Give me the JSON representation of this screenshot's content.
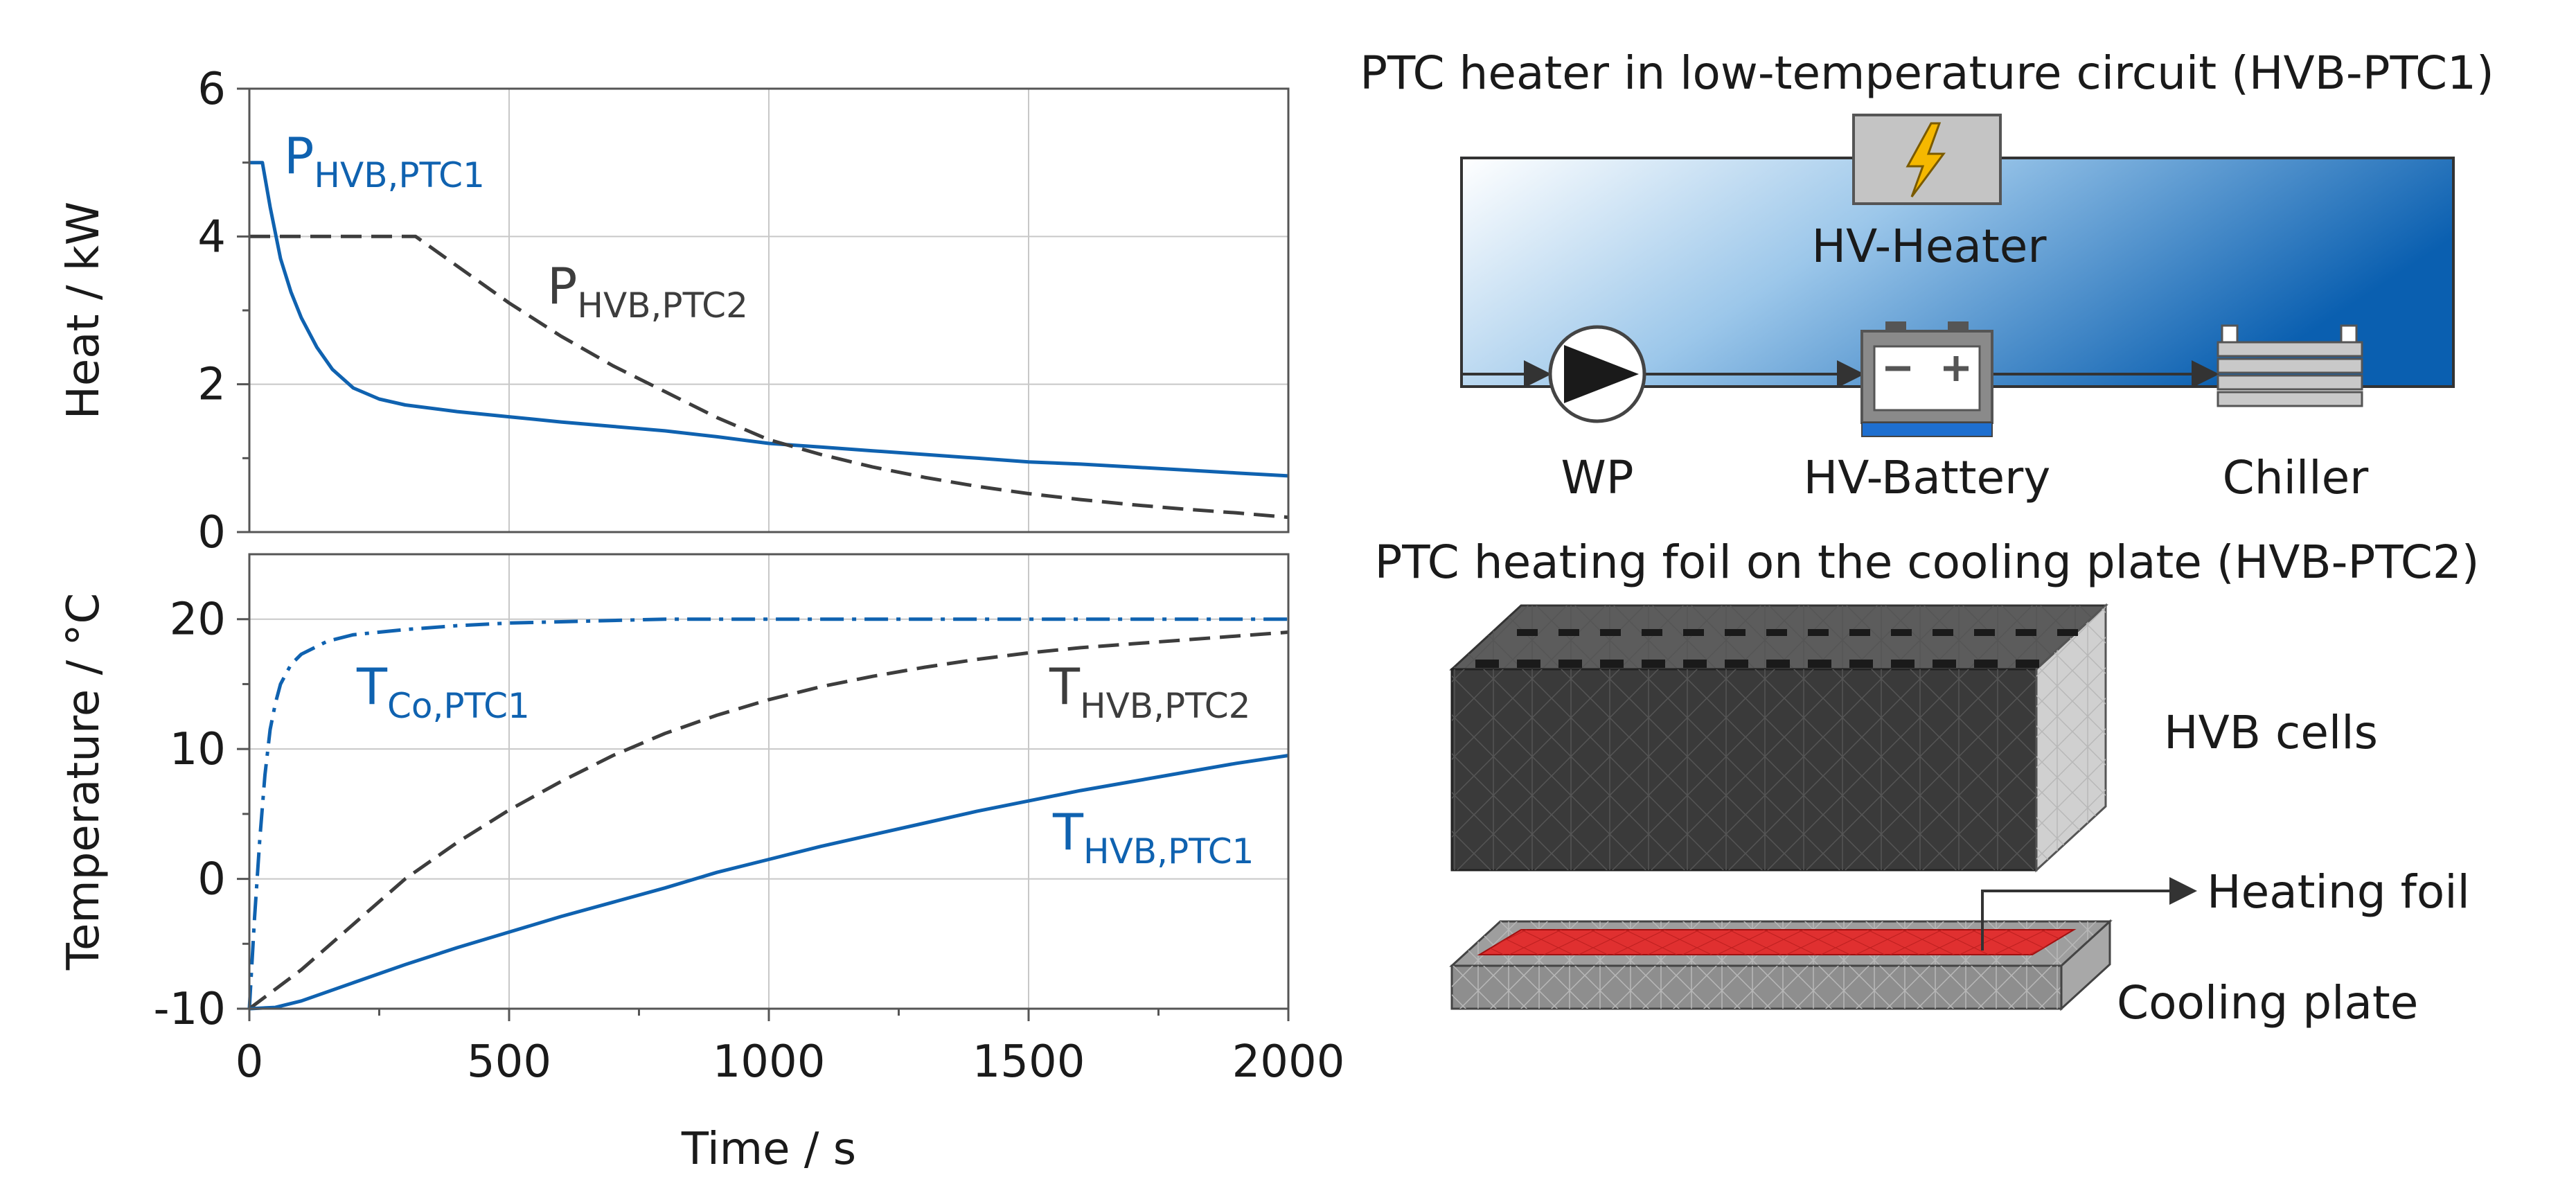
{
  "colors": {
    "blue": "#0f62b0",
    "gray": "#3d3d3d",
    "foil_red": "#e03030",
    "cells_dark": "#3a3a3a",
    "plate_gray": "#8e8e8e",
    "circuit_blue": "#0a5fb0",
    "heater_gray": "#c4c4c4",
    "bolt_yellow": "#f5b800"
  },
  "chart_data": [
    {
      "type": "line",
      "panel": "top",
      "xlabel": "Time / s",
      "ylabel": "Heat / kW",
      "xlim": [
        0,
        2000
      ],
      "ylim": [
        0,
        6
      ],
      "yticks": [
        "0",
        "2",
        "4",
        "6"
      ],
      "grid": true,
      "series": [
        {
          "name": "P_HVB,PTC1",
          "label_main": "P",
          "label_sub": "HVB,PTC1",
          "color_key": "blue",
          "style": "solid",
          "x": [
            0,
            25,
            40,
            60,
            80,
            100,
            130,
            160,
            200,
            250,
            300,
            400,
            500,
            600,
            700,
            800,
            900,
            1000,
            1100,
            1200,
            1300,
            1400,
            1500,
            1600,
            1700,
            1800,
            1900,
            2000
          ],
          "y": [
            5.0,
            5.0,
            4.4,
            3.7,
            3.25,
            2.9,
            2.5,
            2.2,
            1.95,
            1.8,
            1.72,
            1.63,
            1.56,
            1.49,
            1.43,
            1.37,
            1.29,
            1.2,
            1.15,
            1.1,
            1.05,
            1.0,
            0.95,
            0.92,
            0.88,
            0.84,
            0.8,
            0.76
          ]
        },
        {
          "name": "P_HVB,PTC2",
          "label_main": "P",
          "label_sub": "HVB,PTC2",
          "color_key": "gray",
          "style": "dashed",
          "x": [
            0,
            320,
            400,
            500,
            600,
            700,
            800,
            900,
            1000,
            1100,
            1200,
            1300,
            1400,
            1500,
            1600,
            1700,
            1800,
            1900,
            2000
          ],
          "y": [
            4.0,
            4.0,
            3.6,
            3.1,
            2.65,
            2.25,
            1.9,
            1.55,
            1.25,
            1.05,
            0.88,
            0.74,
            0.62,
            0.52,
            0.44,
            0.37,
            0.31,
            0.26,
            0.2
          ]
        }
      ]
    },
    {
      "type": "line",
      "panel": "bottom",
      "xlabel": "Time / s",
      "ylabel": "Temperature / °C",
      "xlim": [
        0,
        2000
      ],
      "ylim": [
        -10,
        25
      ],
      "yticks": [
        "-10",
        "0",
        "10",
        "20"
      ],
      "xticks": [
        "0",
        "500",
        "1000",
        "1500",
        "2000"
      ],
      "grid": true,
      "series": [
        {
          "name": "T_Co,PTC1",
          "label_main": "T",
          "label_sub": "Co,PTC1",
          "color_key": "blue",
          "style": "dashdot",
          "x": [
            0,
            10,
            20,
            30,
            40,
            50,
            60,
            80,
            100,
            150,
            200,
            300,
            400,
            500,
            600,
            800,
            1000,
            1500,
            2000
          ],
          "y": [
            -10,
            -3,
            3,
            8,
            11.5,
            13.5,
            15,
            16.5,
            17.3,
            18.3,
            18.8,
            19.2,
            19.5,
            19.7,
            19.8,
            20.0,
            20.0,
            20.0,
            20.0
          ]
        },
        {
          "name": "T_HVB,PTC2",
          "label_main": "T",
          "label_sub": "HVB,PTC2",
          "color_key": "gray",
          "style": "dashed",
          "x": [
            0,
            100,
            200,
            300,
            400,
            500,
            600,
            700,
            800,
            900,
            1000,
            1100,
            1200,
            1300,
            1400,
            1500,
            1600,
            1700,
            1800,
            1900,
            2000
          ],
          "y": [
            -10,
            -7,
            -3.5,
            0,
            2.8,
            5.3,
            7.5,
            9.5,
            11.2,
            12.6,
            13.8,
            14.8,
            15.6,
            16.3,
            16.9,
            17.4,
            17.8,
            18.1,
            18.4,
            18.7,
            19.0
          ]
        },
        {
          "name": "T_HVB,PTC1",
          "label_main": "T",
          "label_sub": "HVB,PTC1",
          "color_key": "blue",
          "style": "solid",
          "x": [
            0,
            50,
            100,
            200,
            300,
            400,
            500,
            600,
            700,
            800,
            900,
            1000,
            1100,
            1200,
            1300,
            1400,
            1500,
            1600,
            1700,
            1800,
            1900,
            2000
          ],
          "y": [
            -10,
            -9.9,
            -9.4,
            -8.0,
            -6.6,
            -5.3,
            -4.1,
            -2.9,
            -1.8,
            -0.7,
            0.5,
            1.5,
            2.5,
            3.4,
            4.3,
            5.2,
            6.0,
            6.8,
            7.5,
            8.2,
            8.9,
            9.5
          ]
        }
      ]
    }
  ],
  "diagram": {
    "circuit_title": "PTC heater in low-temperature circuit (HVB-PTC1)",
    "heater_label": "HV-Heater",
    "pump_label": "WP",
    "battery_label": "HV-Battery",
    "chiller_label": "Chiller",
    "foil_title": "PTC heating foil on the cooling plate (HVB-PTC2)",
    "cells_label": "HVB cells",
    "foil_label": "Heating foil",
    "plate_label": "Cooling plate"
  }
}
